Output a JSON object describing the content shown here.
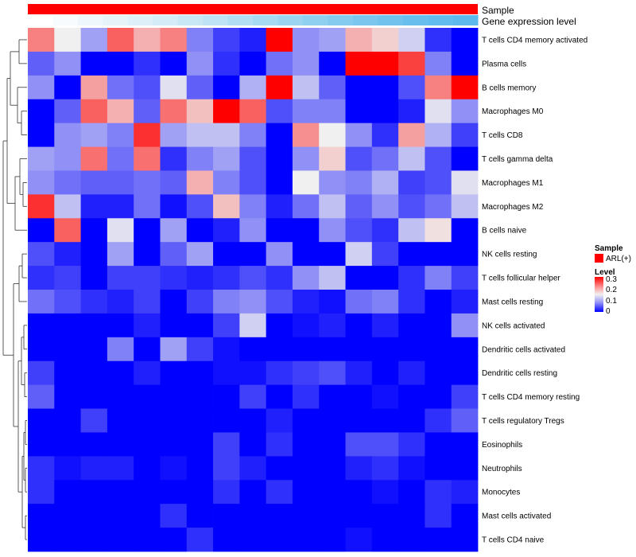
{
  "chart_data": {
    "type": "heatmap",
    "annotations": {
      "sample_label": "Sample",
      "gene_label": "Gene expression level",
      "sample_color": "#ff0000",
      "gene_colors": [
        "#ffffff",
        "#f7fbfd",
        "#eef7fb",
        "#e6f4fa",
        "#ddf0f9",
        "#d4ecf8",
        "#c9e8f6",
        "#bde3f5",
        "#b2def3",
        "#a6d9f2",
        "#9ad4f0",
        "#8fcff0",
        "#84cbef",
        "#7ac6ee",
        "#71c2ed",
        "#68bfee",
        "#62bced",
        "#5db9ec"
      ]
    },
    "rows": [
      "T cells CD4 memory activated",
      "Plasma cells",
      "B cells memory",
      "Macrophages M0",
      "T cells CD8",
      "T cells gamma delta",
      "Macrophages M1",
      "Macrophages M2",
      "B cells naive",
      "NK cells resting",
      "T cells follicular helper",
      "Mast cells resting",
      "NK cells activated",
      "Dendritic cells activated",
      "Dendritic cells resting",
      "T cells CD4 memory resting",
      "T cells regulatory  Tregs",
      "Eosinophils",
      "Neutrophils",
      "Monocytes",
      "Mast cells activated",
      "T cells CD4 naive"
    ],
    "values": [
      [
        0.22,
        0.15,
        0.1,
        0.24,
        0.19,
        0.22,
        0.08,
        0.04,
        0.02,
        0.3,
        0.09,
        0.1,
        0.19,
        0.17,
        0.13,
        0.03,
        0.0
      ],
      [
        0.06,
        0.09,
        0.0,
        0.0,
        0.03,
        0.0,
        0.09,
        0.03,
        0.0,
        0.07,
        0.09,
        0.0,
        0.3,
        0.3,
        0.26,
        0.08,
        0.0
      ],
      [
        0.09,
        0.0,
        0.2,
        0.07,
        0.05,
        0.14,
        0.06,
        0.0,
        0.11,
        0.3,
        0.12,
        0.06,
        0.0,
        0.0,
        0.05,
        0.22,
        0.3
      ],
      [
        0.0,
        0.06,
        0.24,
        0.19,
        0.06,
        0.23,
        0.18,
        0.3,
        0.24,
        0.05,
        0.08,
        0.08,
        0.0,
        0.0,
        0.02,
        0.14,
        0.09
      ],
      [
        0.0,
        0.09,
        0.1,
        0.08,
        0.27,
        0.1,
        0.12,
        0.12,
        0.08,
        0.0,
        0.21,
        0.15,
        0.09,
        0.03,
        0.2,
        0.11,
        0.04
      ],
      [
        0.1,
        0.09,
        0.23,
        0.07,
        0.23,
        0.03,
        0.08,
        0.1,
        0.05,
        0.0,
        0.09,
        0.17,
        0.05,
        0.07,
        0.12,
        0.05,
        0.0
      ],
      [
        0.09,
        0.07,
        0.06,
        0.06,
        0.07,
        0.06,
        0.19,
        0.08,
        0.05,
        0.0,
        0.15,
        0.09,
        0.08,
        0.11,
        0.04,
        0.05,
        0.14
      ],
      [
        0.27,
        0.12,
        0.02,
        0.02,
        0.07,
        0.01,
        0.05,
        0.18,
        0.08,
        0.02,
        0.07,
        0.12,
        0.06,
        0.09,
        0.05,
        0.07,
        0.12
      ],
      [
        0.0,
        0.24,
        0.0,
        0.14,
        0.0,
        0.1,
        0.0,
        0.02,
        0.09,
        0.0,
        0.0,
        0.09,
        0.05,
        0.03,
        0.12,
        0.16,
        0.0
      ],
      [
        0.05,
        0.02,
        0.0,
        0.1,
        0.0,
        0.06,
        0.1,
        0.0,
        0.0,
        0.09,
        0.0,
        0.0,
        0.13,
        0.04,
        0.0,
        0.0,
        0.0
      ],
      [
        0.03,
        0.04,
        0.0,
        0.04,
        0.04,
        0.03,
        0.02,
        0.03,
        0.05,
        0.03,
        0.09,
        0.12,
        0.0,
        0.0,
        0.03,
        0.08,
        0.04
      ],
      [
        0.07,
        0.05,
        0.03,
        0.02,
        0.04,
        0.0,
        0.04,
        0.08,
        0.09,
        0.05,
        0.02,
        0.01,
        0.07,
        0.08,
        0.03,
        0.0,
        0.02
      ],
      [
        0.0,
        0.0,
        0.0,
        0.0,
        0.02,
        0.0,
        0.0,
        0.04,
        0.13,
        0.0,
        0.01,
        0.02,
        0.0,
        0.02,
        0.0,
        0.0,
        0.09
      ],
      [
        0.0,
        0.0,
        0.0,
        0.08,
        0.0,
        0.1,
        0.04,
        0.01,
        0.0,
        0.0,
        0.0,
        0.0,
        0.0,
        0.0,
        0.0,
        0.0,
        0.0
      ],
      [
        0.04,
        0.0,
        0.0,
        0.0,
        0.02,
        0.0,
        0.0,
        0.01,
        0.01,
        0.03,
        0.04,
        0.05,
        0.02,
        0.0,
        0.02,
        0.0,
        0.0
      ],
      [
        0.06,
        0.0,
        0.0,
        0.0,
        0.0,
        0.0,
        0.0,
        0.0,
        0.04,
        0.0,
        0.03,
        0.0,
        0.0,
        0.01,
        0.0,
        0.0,
        0.04
      ],
      [
        0.0,
        0.0,
        0.04,
        0.0,
        0.0,
        0.0,
        0.0,
        0.0,
        0.0,
        0.02,
        0.0,
        0.0,
        0.0,
        0.0,
        0.0,
        0.03,
        0.06
      ],
      [
        0.0,
        0.0,
        0.0,
        0.0,
        0.0,
        0.0,
        0.0,
        0.04,
        0.0,
        0.03,
        0.0,
        0.0,
        0.05,
        0.05,
        0.03,
        0.0,
        0.0
      ],
      [
        0.03,
        0.01,
        0.02,
        0.02,
        0.0,
        0.01,
        0.0,
        0.04,
        0.02,
        0.0,
        0.0,
        0.0,
        0.02,
        0.03,
        0.01,
        0.0,
        0.0
      ],
      [
        0.03,
        0.0,
        0.0,
        0.0,
        0.0,
        0.0,
        0.0,
        0.03,
        0.0,
        0.03,
        0.0,
        0.0,
        0.0,
        0.01,
        0.0,
        0.03,
        0.02
      ],
      [
        0.0,
        0.0,
        0.0,
        0.0,
        0.0,
        0.03,
        0.0,
        0.0,
        0.0,
        0.0,
        0.0,
        0.0,
        0.0,
        0.0,
        0.0,
        0.03,
        0.0
      ],
      [
        0.0,
        0.0,
        0.0,
        0.0,
        0.0,
        0.0,
        0.03,
        0.0,
        0.0,
        0.0,
        0.0,
        0.0,
        0.01,
        0.0,
        0.0,
        0.0,
        0.0
      ]
    ],
    "color_scale": {
      "min": 0,
      "max": 0.3,
      "low_color": "#0000ff",
      "mid_color": "#f0f0f0",
      "high_color": "#ff0000"
    },
    "legend": {
      "sample_title": "Sample",
      "sample_entry": "ARL(+)",
      "level_title": "Level",
      "ticks": [
        "0.3",
        "0.2",
        "0.1",
        "0"
      ]
    }
  }
}
